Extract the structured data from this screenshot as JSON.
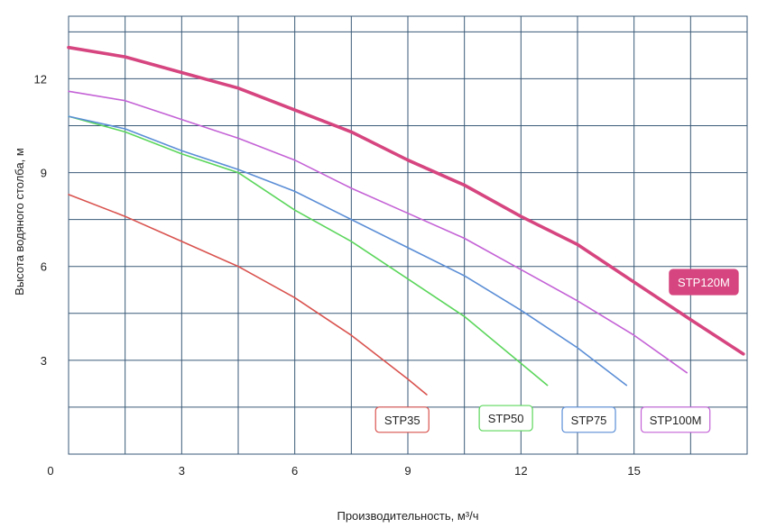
{
  "chart_data": {
    "type": "line",
    "xlabel": "Производительность, м³/ч",
    "ylabel": "Высота водяного столба, м",
    "xlim": [
      0,
      18
    ],
    "ylim": [
      0,
      14
    ],
    "x_ticks": [
      0,
      3,
      6,
      9,
      12,
      15
    ],
    "y_ticks": [
      3,
      6,
      9,
      12
    ],
    "x_grid": [
      0,
      1.5,
      3,
      4.5,
      6,
      7.5,
      9,
      10.5,
      12,
      13.5,
      15,
      16.5,
      18
    ],
    "y_grid": [
      0,
      1.5,
      3,
      4.5,
      6,
      7.5,
      9,
      10.5,
      12,
      13.5
    ],
    "grid": true,
    "series": [
      {
        "name": "STP35",
        "color": "#d9534f",
        "width": 1.6,
        "x": [
          0,
          1.5,
          3,
          4.5,
          6,
          7.5,
          9,
          9.5
        ],
        "y": [
          8.3,
          7.6,
          6.8,
          6.0,
          5.0,
          3.8,
          2.4,
          1.9
        ]
      },
      {
        "name": "STP50",
        "color": "#5cd65c",
        "width": 1.6,
        "x": [
          0,
          1.5,
          3,
          4.5,
          6,
          7.5,
          9,
          10.5,
          12,
          12.7
        ],
        "y": [
          10.8,
          10.3,
          9.6,
          9.0,
          7.8,
          6.8,
          5.6,
          4.4,
          2.9,
          2.2
        ]
      },
      {
        "name": "STP75",
        "color": "#5b8ed6",
        "width": 1.6,
        "x": [
          0,
          1.5,
          3,
          4.5,
          6,
          7.5,
          9,
          10.5,
          12,
          13.5,
          14.8
        ],
        "y": [
          10.8,
          10.4,
          9.7,
          9.1,
          8.4,
          7.5,
          6.6,
          5.7,
          4.6,
          3.4,
          2.2
        ]
      },
      {
        "name": "STP100M",
        "color": "#c462d6",
        "width": 1.6,
        "x": [
          0,
          1.5,
          3,
          4.5,
          6,
          7.5,
          9,
          10.5,
          12,
          13.5,
          15,
          16.4
        ],
        "y": [
          11.6,
          11.3,
          10.7,
          10.1,
          9.4,
          8.5,
          7.7,
          6.9,
          5.9,
          4.9,
          3.8,
          2.6
        ]
      },
      {
        "name": "STP120M",
        "color": "#d6457f",
        "width": 3.6,
        "x": [
          0,
          1.5,
          3,
          4.5,
          6,
          7.5,
          9,
          10.5,
          12,
          13.5,
          15,
          16.5,
          17.9
        ],
        "y": [
          13.0,
          12.7,
          12.2,
          11.7,
          11.0,
          10.3,
          9.4,
          8.6,
          7.6,
          6.7,
          5.5,
          4.3,
          3.2
        ]
      }
    ],
    "labels": [
      {
        "text": "STP35",
        "series": "STP35",
        "style": "outline",
        "anchor_x": 8.85,
        "anchor_y": 1.1
      },
      {
        "text": "STP50",
        "series": "STP50",
        "style": "outline",
        "anchor_x": 11.6,
        "anchor_y": 1.15
      },
      {
        "text": "STP75",
        "series": "STP75",
        "style": "outline",
        "anchor_x": 13.8,
        "anchor_y": 1.1
      },
      {
        "text": "STP100M",
        "series": "STP100M",
        "style": "outline",
        "anchor_x": 16.1,
        "anchor_y": 1.1
      },
      {
        "text": "STP120M",
        "series": "STP120M",
        "style": "filled",
        "anchor_x": 16.85,
        "anchor_y": 5.5
      }
    ]
  }
}
